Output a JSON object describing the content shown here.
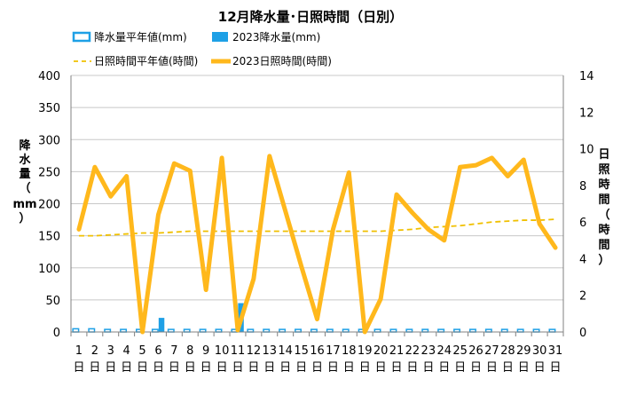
{
  "chart_data": {
    "type": "bar+line",
    "title": "12月降水量･日照時間（日別）",
    "categories": [
      "1",
      "2",
      "3",
      "4",
      "5",
      "6",
      "7",
      "8",
      "9",
      "10",
      "11",
      "12",
      "13",
      "14",
      "15",
      "16",
      "17",
      "18",
      "19",
      "20",
      "21",
      "22",
      "23",
      "24",
      "25",
      "26",
      "27",
      "28",
      "29",
      "30",
      "31"
    ],
    "day_suffix": "日",
    "y_left": {
      "label": [
        "降",
        "水",
        "量",
        "（",
        "mm",
        "）"
      ],
      "ylim": [
        0,
        400
      ],
      "ticks": [
        "0",
        "50",
        "100",
        "150",
        "200",
        "250",
        "300",
        "350",
        "400"
      ]
    },
    "y_right": {
      "label": [
        "日",
        "照",
        "時",
        "間",
        "（",
        "時",
        "間",
        "）"
      ],
      "ylim": [
        0,
        14
      ],
      "ticks": [
        "0",
        "2",
        "4",
        "6",
        "8",
        "10",
        "12",
        "14"
      ]
    },
    "legend": {
      "placement": "top",
      "items": [
        {
          "id": "precip_normal",
          "label": "降水量平年値(mm)"
        },
        {
          "id": "precip_2023",
          "label": "2023降水量(mm)"
        },
        {
          "id": "sun_normal",
          "label": "日照時間平年値(時間)"
        },
        {
          "id": "sun_2023",
          "label": "2023日照時間(時間)"
        }
      ]
    },
    "series": [
      {
        "id": "precip_normal",
        "axis": "left",
        "kind": "bar",
        "values": [
          5,
          5,
          4,
          4,
          4,
          4,
          4,
          4,
          4,
          4,
          4,
          4,
          4,
          4,
          4,
          4,
          4,
          4,
          4,
          4,
          4,
          4,
          4,
          4,
          4,
          4,
          4,
          4,
          4,
          4,
          4
        ]
      },
      {
        "id": "precip_2023",
        "axis": "left",
        "kind": "bar",
        "values": [
          0,
          0,
          0,
          0,
          0,
          22,
          0,
          0,
          0,
          0,
          45,
          0,
          0,
          0,
          0,
          0,
          0,
          0,
          0,
          0,
          0,
          0,
          0,
          0,
          0,
          0,
          0,
          0,
          0,
          0,
          0
        ]
      },
      {
        "id": "sun_normal",
        "axis": "right",
        "kind": "dashed-line",
        "values": [
          5.25,
          5.25,
          5.3,
          5.35,
          5.4,
          5.4,
          5.45,
          5.5,
          5.5,
          5.5,
          5.5,
          5.5,
          5.5,
          5.5,
          5.5,
          5.5,
          5.5,
          5.5,
          5.5,
          5.5,
          5.55,
          5.6,
          5.7,
          5.75,
          5.8,
          5.9,
          6.0,
          6.05,
          6.1,
          6.1,
          6.15
        ]
      },
      {
        "id": "sun_2023",
        "axis": "right",
        "kind": "line",
        "values": [
          5.6,
          9.0,
          7.4,
          8.5,
          0.0,
          6.4,
          9.2,
          8.8,
          2.3,
          9.5,
          0.1,
          2.9,
          9.6,
          6.6,
          3.6,
          0.7,
          5.6,
          8.7,
          0.0,
          1.8,
          7.5,
          6.5,
          5.6,
          5.0,
          9.0,
          9.1,
          9.5,
          8.5,
          9.4,
          5.9,
          4.6
        ]
      }
    ]
  },
  "colors": {
    "precip_normal": "#1ea0e6",
    "precip_2023": "#1ea0e6",
    "sun_normal": "#f0c000",
    "sun_2023": "#ffb81c",
    "grid": "#c8c8c8",
    "axis": "#808080"
  }
}
